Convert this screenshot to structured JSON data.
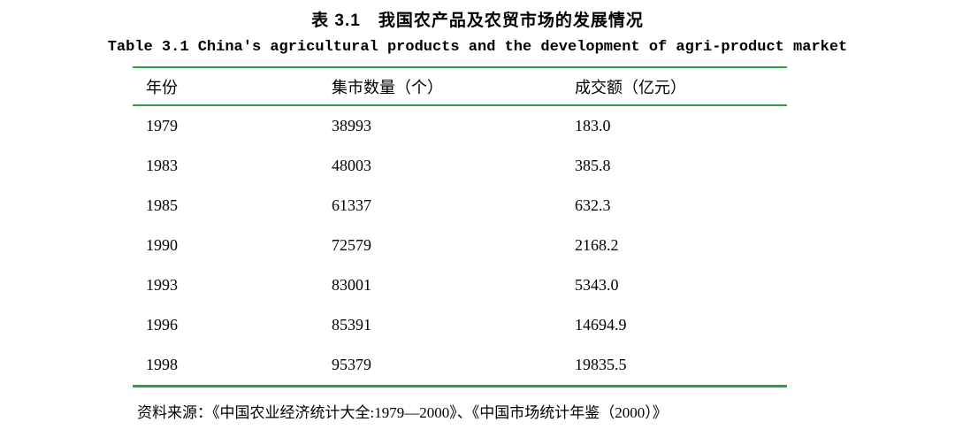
{
  "title_cn": "表 3.1　我国农产品及农贸市场的发展情况",
  "title_en": "Table 3.1  China's agricultural products and the development of agri-product market",
  "table": {
    "columns": [
      "年份",
      "集市数量（个）",
      "成交额（亿元）"
    ],
    "rows": [
      [
        "1979",
        "38993",
        "183.0"
      ],
      [
        "1983",
        "48003",
        "385.8"
      ],
      [
        "1985",
        "61337",
        "632.3"
      ],
      [
        "1990",
        "72579",
        "2168.2"
      ],
      [
        "1993",
        "83001",
        "5343.0"
      ],
      [
        "1996",
        "85391",
        "14694.9"
      ],
      [
        "1998",
        "95379",
        "19835.5"
      ]
    ]
  },
  "source": "资料来源：《中国农业经济统计大全:1979—2000》、《中国市场统计年鉴（2000）》",
  "colors": {
    "rule": "#2f9e44"
  },
  "chart_data": {
    "type": "table",
    "title": "表 3.1 我国农产品及农贸市场的发展情况 / Table 3.1 China's agricultural products and the development of agri-product market",
    "columns": [
      "年份",
      "集市数量（个）",
      "成交额（亿元）"
    ],
    "rows": [
      {
        "year": 1979,
        "market_count": 38993,
        "transaction_value_yi_yuan": 183.0
      },
      {
        "year": 1983,
        "market_count": 48003,
        "transaction_value_yi_yuan": 385.8
      },
      {
        "year": 1985,
        "market_count": 61337,
        "transaction_value_yi_yuan": 632.3
      },
      {
        "year": 1990,
        "market_count": 72579,
        "transaction_value_yi_yuan": 2168.2
      },
      {
        "year": 1993,
        "market_count": 83001,
        "transaction_value_yi_yuan": 5343.0
      },
      {
        "year": 1996,
        "market_count": 85391,
        "transaction_value_yi_yuan": 14694.9
      },
      {
        "year": 1998,
        "market_count": 95379,
        "transaction_value_yi_yuan": 19835.5
      }
    ],
    "source_note": "资料来源：《中国农业经济统计大全:1979—2000》、《中国市场统计年鉴（2000）》"
  }
}
